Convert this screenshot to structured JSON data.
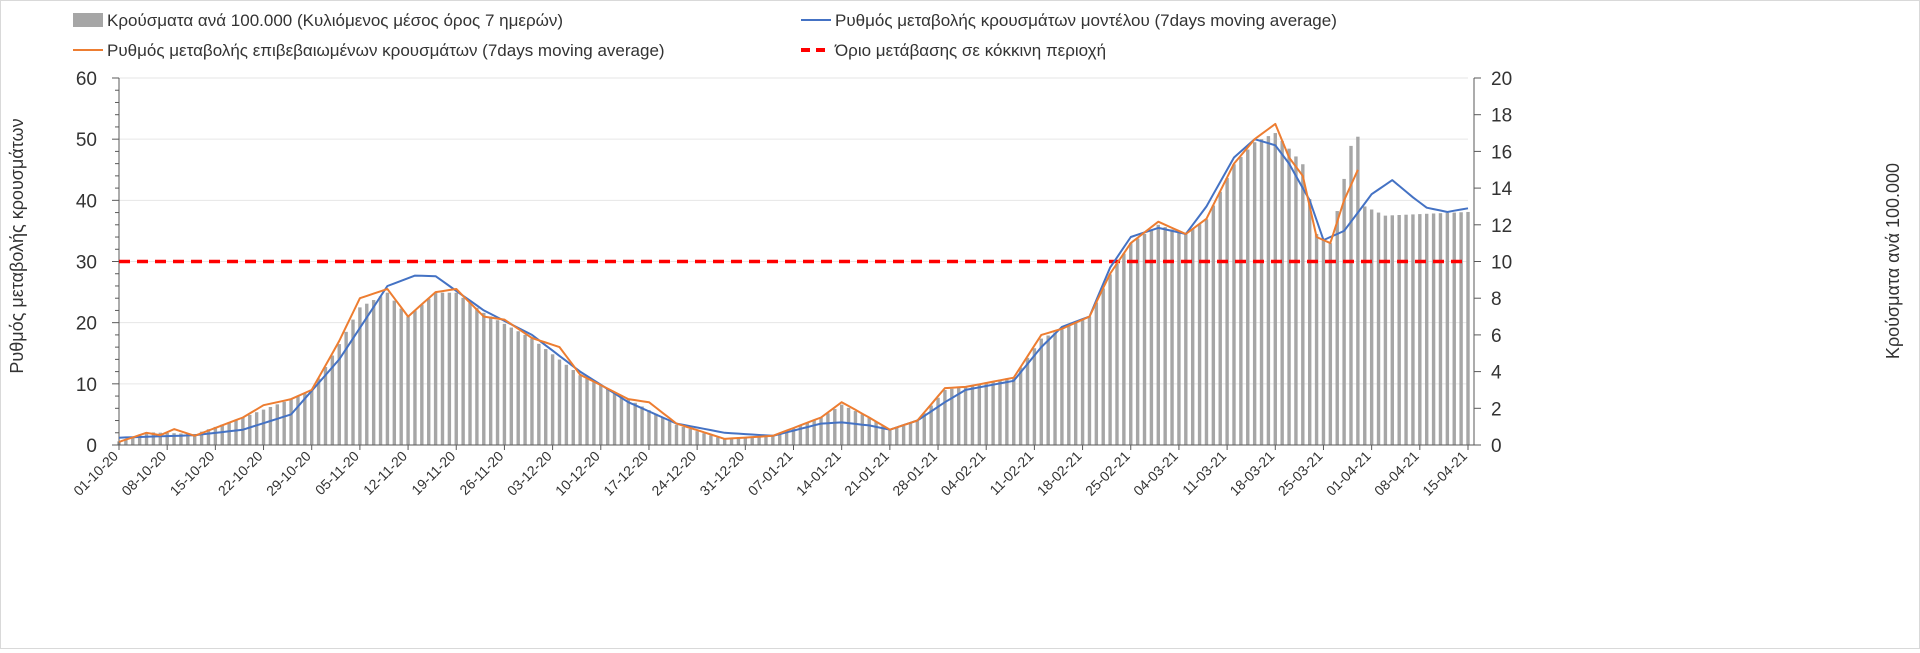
{
  "chart_data": {
    "type": "bar+line",
    "legend": {
      "placement": "top",
      "items": [
        {
          "label": "Κρούσματα ανά 100.000 (Κυλιόμενος μέσος όρος 7 ημερών)",
          "color": "#a6a6a6",
          "kind": "bar"
        },
        {
          "label": "Ρυθμός μεταβολής κρουσμάτων μοντέλου (7days moving average)",
          "color": "#4472c4",
          "kind": "line"
        },
        {
          "label": "Ρυθμός μεταβολής επιβεβαιωμένων κρουσμάτων (7days moving average)",
          "color": "#ed7d31",
          "kind": "line"
        },
        {
          "label": "Όριο μετάβασης σε κόκκινη περιοχή",
          "color": "#ff0000",
          "kind": "dashed"
        }
      ]
    },
    "ylabel_left": "Ρυθμός μεταβολής κρουσμάτων",
    "ylabel_right": "Κρούσματα ανά 100.000",
    "ylim_left": [
      0,
      60
    ],
    "ylim_right": [
      0,
      20
    ],
    "yticks_left": [
      "0",
      "10",
      "20",
      "30",
      "40",
      "50",
      "60"
    ],
    "yticks_right": [
      "0",
      "2",
      "4",
      "6",
      "8",
      "10",
      "12",
      "14",
      "16",
      "18",
      "20"
    ],
    "days": 197,
    "x_tick_labels": [
      "01-10-20",
      "08-10-20",
      "15-10-20",
      "22-10-20",
      "29-10-20",
      "05-11-20",
      "12-11-20",
      "19-11-20",
      "26-11-20",
      "03-12-20",
      "10-12-20",
      "17-12-20",
      "24-12-20",
      "31-12-20",
      "07-01-21",
      "14-01-21",
      "21-01-21",
      "28-01-21",
      "04-02-21",
      "11-02-21",
      "18-02-21",
      "25-02-21",
      "04-03-21",
      "11-03-21",
      "18-03-21",
      "25-03-21",
      "01-04-21",
      "08-04-21",
      "15-04-21"
    ],
    "threshold_left": 30,
    "series": {
      "bars_right_axis_day_keypoints": [
        [
          0,
          0.2
        ],
        [
          4,
          0.7
        ],
        [
          11,
          0.6
        ],
        [
          18,
          1.5
        ],
        [
          25,
          2.5
        ],
        [
          28,
          3
        ],
        [
          32,
          5.5
        ],
        [
          35,
          7.5
        ],
        [
          39,
          8.3
        ],
        [
          42,
          7
        ],
        [
          46,
          8.3
        ],
        [
          49,
          8.3
        ],
        [
          53,
          7.2
        ],
        [
          60,
          5.8
        ],
        [
          67,
          3.8
        ],
        [
          74,
          2.5
        ],
        [
          81,
          1.1
        ],
        [
          88,
          0.3
        ],
        [
          95,
          0.5
        ],
        [
          102,
          1.5
        ],
        [
          105,
          2.2
        ],
        [
          109,
          1.5
        ],
        [
          112,
          0.8
        ],
        [
          116,
          1.3
        ],
        [
          120,
          3
        ],
        [
          123,
          3.2
        ],
        [
          130,
          3.7
        ],
        [
          134,
          5.8
        ],
        [
          137,
          6.3
        ],
        [
          141,
          7
        ],
        [
          144,
          9.3
        ],
        [
          147,
          11
        ],
        [
          151,
          12
        ],
        [
          155,
          11.5
        ],
        [
          158,
          12.3
        ],
        [
          162,
          15.3
        ],
        [
          165,
          16.5
        ],
        [
          168,
          17
        ],
        [
          172,
          15.3
        ],
        [
          174,
          11.5
        ],
        [
          176,
          11
        ],
        [
          178,
          14.5
        ],
        [
          179,
          16.3
        ],
        [
          180,
          16.8
        ],
        [
          181,
          13
        ],
        [
          184,
          12.5
        ],
        [
          196,
          12.7
        ]
      ],
      "model_left_axis_day_keypoints": [
        [
          0,
          1.2
        ],
        [
          11,
          1.6
        ],
        [
          18,
          2.5
        ],
        [
          25,
          5
        ],
        [
          32,
          14
        ],
        [
          39,
          26
        ],
        [
          43,
          27.7
        ],
        [
          46,
          27.6
        ],
        [
          53,
          22
        ],
        [
          60,
          18
        ],
        [
          67,
          12
        ],
        [
          74,
          7
        ],
        [
          81,
          3.5
        ],
        [
          88,
          2
        ],
        [
          95,
          1.5
        ],
        [
          102,
          3.5
        ],
        [
          105,
          3.7
        ],
        [
          109,
          3.2
        ],
        [
          112,
          2.5
        ],
        [
          116,
          4
        ],
        [
          120,
          7
        ],
        [
          123,
          9
        ],
        [
          130,
          10.5
        ],
        [
          134,
          16
        ],
        [
          137,
          19.3
        ],
        [
          141,
          21
        ],
        [
          144,
          29
        ],
        [
          147,
          34
        ],
        [
          151,
          35.5
        ],
        [
          155,
          34.5
        ],
        [
          158,
          39
        ],
        [
          162,
          47
        ],
        [
          165,
          50
        ],
        [
          168,
          49
        ],
        [
          170,
          46
        ],
        [
          173,
          40
        ],
        [
          175,
          33.5
        ],
        [
          178,
          35
        ],
        [
          182,
          41
        ],
        [
          185,
          43.3
        ],
        [
          188,
          40.5
        ],
        [
          190,
          38.8
        ],
        [
          193,
          38.1
        ],
        [
          196,
          38.7
        ]
      ],
      "confirmed_left_axis_day_keypoints": [
        [
          0,
          0.5
        ],
        [
          4,
          2
        ],
        [
          6,
          1.6
        ],
        [
          8,
          2.6
        ],
        [
          11,
          1.5
        ],
        [
          14,
          2.8
        ],
        [
          18,
          4.5
        ],
        [
          21,
          6.5
        ],
        [
          25,
          7.5
        ],
        [
          28,
          9
        ],
        [
          32,
          17
        ],
        [
          35,
          24
        ],
        [
          39,
          25.5
        ],
        [
          42,
          21
        ],
        [
          46,
          25
        ],
        [
          49,
          25.5
        ],
        [
          53,
          21
        ],
        [
          56,
          20.5
        ],
        [
          60,
          17.5
        ],
        [
          64,
          16
        ],
        [
          67,
          11.5
        ],
        [
          74,
          7.5
        ],
        [
          77,
          7
        ],
        [
          81,
          3.5
        ],
        [
          88,
          1
        ],
        [
          95,
          1.5
        ],
        [
          102,
          4.5
        ],
        [
          105,
          7
        ],
        [
          109,
          4.5
        ],
        [
          112,
          2.5
        ],
        [
          116,
          4
        ],
        [
          120,
          9.3
        ],
        [
          123,
          9.5
        ],
        [
          130,
          11
        ],
        [
          134,
          18
        ],
        [
          137,
          19
        ],
        [
          141,
          21
        ],
        [
          144,
          28
        ],
        [
          147,
          33
        ],
        [
          151,
          36.5
        ],
        [
          155,
          34.5
        ],
        [
          158,
          37
        ],
        [
          162,
          46
        ],
        [
          165,
          50
        ],
        [
          168,
          52.5
        ],
        [
          170,
          47
        ],
        [
          172,
          44
        ],
        [
          174,
          34
        ],
        [
          176,
          33
        ],
        [
          178,
          40
        ],
        [
          180,
          45
        ]
      ]
    }
  }
}
